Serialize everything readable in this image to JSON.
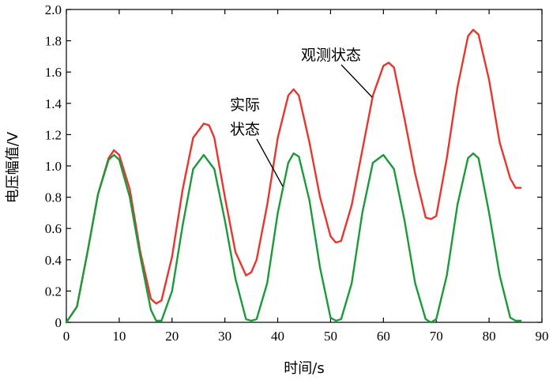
{
  "chart_data": {
    "type": "line",
    "title": "",
    "xlabel": "时间/s",
    "ylabel": "电压幅值/V",
    "xlim": [
      0,
      90
    ],
    "ylim": [
      0,
      2.0
    ],
    "xticks": [
      0,
      10,
      20,
      30,
      40,
      50,
      60,
      70,
      80,
      90
    ],
    "yticks": [
      0,
      0.2,
      0.4,
      0.6,
      0.8,
      1.0,
      1.2,
      1.4,
      1.6,
      1.8,
      2.0
    ],
    "xtick_labels": [
      "0",
      "10",
      "20",
      "30",
      "40",
      "50",
      "60",
      "70",
      "80",
      "90"
    ],
    "ytick_labels": [
      "0",
      "0.2",
      "0.4",
      "0.6",
      "0.8",
      "1.0",
      "1.2",
      "1.4",
      "1.6",
      "1.8",
      "2.0"
    ],
    "grid": false,
    "series": [
      {
        "name": "观测状态",
        "color": "#e8352e",
        "x": [
          0,
          2,
          4,
          6,
          8,
          9,
          10,
          12,
          14,
          16,
          17,
          18,
          20,
          22,
          24,
          26,
          27,
          28,
          30,
          32,
          34,
          35,
          36,
          38,
          40,
          42,
          43,
          44,
          46,
          48,
          50,
          51,
          52,
          54,
          56,
          58,
          60,
          61,
          62,
          64,
          66,
          68,
          69,
          70,
          72,
          74,
          76,
          77,
          78,
          80,
          82,
          84,
          85,
          86
        ],
        "y": [
          0.0,
          0.1,
          0.45,
          0.82,
          1.05,
          1.1,
          1.07,
          0.85,
          0.45,
          0.15,
          0.12,
          0.14,
          0.42,
          0.85,
          1.18,
          1.27,
          1.26,
          1.18,
          0.8,
          0.45,
          0.3,
          0.32,
          0.4,
          0.75,
          1.18,
          1.45,
          1.49,
          1.45,
          1.15,
          0.8,
          0.55,
          0.51,
          0.52,
          0.75,
          1.1,
          1.45,
          1.64,
          1.66,
          1.63,
          1.3,
          0.95,
          0.67,
          0.66,
          0.68,
          1.05,
          1.5,
          1.83,
          1.87,
          1.84,
          1.55,
          1.15,
          0.92,
          0.86,
          0.86
        ]
      },
      {
        "name": "实际状态",
        "color": "#1a9a3a",
        "x": [
          0,
          2,
          4,
          6,
          8,
          9,
          10,
          12,
          14,
          16,
          17,
          18,
          20,
          22,
          24,
          26,
          28,
          30,
          32,
          34,
          35,
          36,
          38,
          40,
          42,
          43,
          44,
          46,
          48,
          50,
          51,
          52,
          54,
          56,
          58,
          60,
          62,
          64,
          66,
          68,
          69,
          70,
          72,
          74,
          76,
          77,
          78,
          80,
          82,
          84,
          85,
          86
        ],
        "y": [
          0.0,
          0.1,
          0.45,
          0.82,
          1.04,
          1.07,
          1.04,
          0.8,
          0.42,
          0.08,
          0.01,
          0.01,
          0.2,
          0.62,
          0.98,
          1.07,
          0.98,
          0.65,
          0.28,
          0.02,
          0.01,
          0.02,
          0.25,
          0.7,
          1.02,
          1.08,
          1.06,
          0.78,
          0.35,
          0.03,
          0.01,
          0.02,
          0.25,
          0.7,
          1.02,
          1.07,
          0.98,
          0.65,
          0.25,
          0.02,
          0.0,
          0.02,
          0.3,
          0.75,
          1.05,
          1.08,
          1.05,
          0.7,
          0.3,
          0.03,
          0.01,
          0.01
        ]
      }
    ],
    "annotations": [
      {
        "lines": [
          "观测状态"
        ]
      },
      {
        "lines": [
          "实际",
          "状态"
        ]
      }
    ]
  }
}
